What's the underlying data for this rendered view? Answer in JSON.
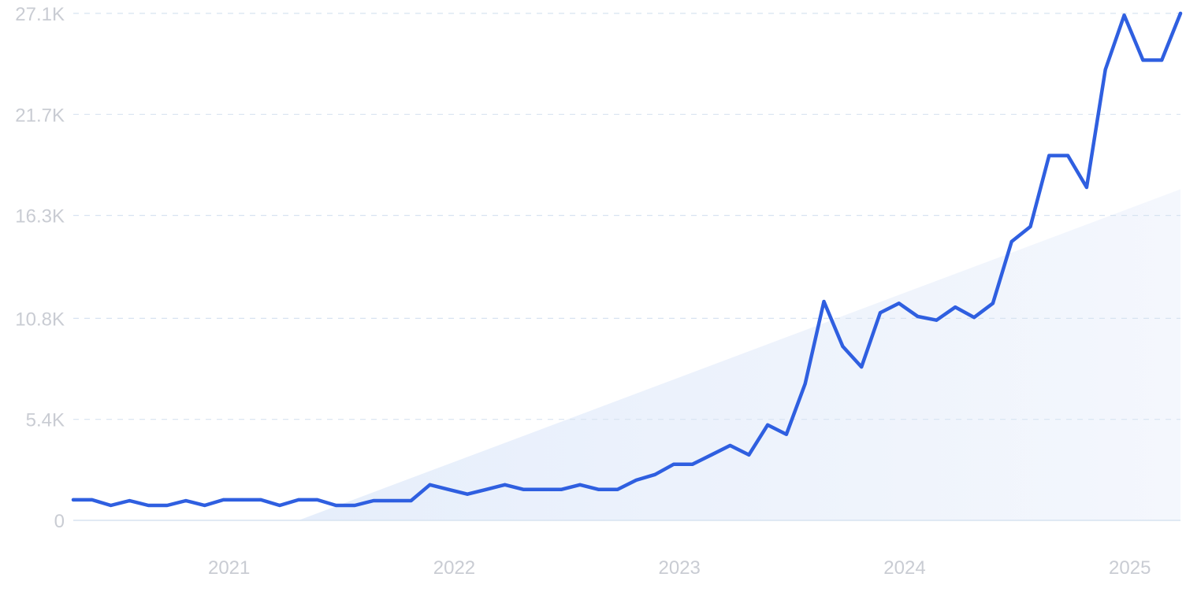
{
  "chart_data": {
    "type": "line",
    "title": "",
    "xlabel": "",
    "ylabel": "",
    "y_ticks": [
      "0",
      "5.4K",
      "10.8K",
      "16.3K",
      "21.7K",
      "27.1K"
    ],
    "y_tick_values": [
      0,
      5400,
      10800,
      16300,
      21700,
      27100
    ],
    "ylim": [
      0,
      27100
    ],
    "x_ticks": [
      "2021",
      "2022",
      "2023",
      "2024",
      "2025"
    ],
    "x_tick_values": [
      "2021-01",
      "2022-01",
      "2023-01",
      "2024-01",
      "2025-01"
    ],
    "xlim": [
      "2020-06",
      "2025-05"
    ],
    "grid": true,
    "colors": {
      "line": "#2f5fe0",
      "grid": "#d7e3f1",
      "trend": "#eaf1fc",
      "tick": "#c9ccd3"
    },
    "series": [
      {
        "x": [
          "2020-06",
          "2020-07",
          "2020-08",
          "2020-09",
          "2020-10",
          "2020-11",
          "2020-12",
          "2021-01",
          "2021-02",
          "2021-03",
          "2021-04",
          "2021-05",
          "2021-06",
          "2021-07",
          "2021-08",
          "2021-09",
          "2021-10",
          "2021-11",
          "2021-12",
          "2022-01",
          "2022-02",
          "2022-03",
          "2022-04",
          "2022-05",
          "2022-06",
          "2022-07",
          "2022-08",
          "2022-09",
          "2022-10",
          "2022-11",
          "2022-12",
          "2023-01",
          "2023-02",
          "2023-03",
          "2023-04",
          "2023-05",
          "2023-06",
          "2023-07",
          "2023-08",
          "2023-09",
          "2023-10",
          "2023-11",
          "2023-12",
          "2024-01",
          "2024-02",
          "2024-03",
          "2024-04",
          "2024-05",
          "2024-06",
          "2024-07",
          "2024-08",
          "2024-09",
          "2024-10",
          "2024-11",
          "2024-12",
          "2025-01",
          "2025-02",
          "2025-03",
          "2025-04",
          "2025-05"
        ],
        "values": [
          1100,
          1100,
          800,
          1050,
          800,
          800,
          1050,
          800,
          1100,
          1100,
          1100,
          800,
          1100,
          1100,
          800,
          800,
          1050,
          1050,
          1050,
          1900,
          1650,
          1400,
          1650,
          1900,
          1650,
          1650,
          1650,
          1900,
          1650,
          1650,
          2150,
          2450,
          3000,
          3000,
          3500,
          4000,
          3500,
          5100,
          4600,
          7300,
          11700,
          9300,
          8200,
          11100,
          11600,
          10900,
          10700,
          11400,
          10850,
          11600,
          14900,
          15700,
          19500,
          19500,
          17800,
          24100,
          27000,
          24600,
          24600,
          27100
        ]
      }
    ],
    "trend": {
      "x": [
        "2021-06",
        "2025-05"
      ],
      "values": [
        0,
        17700
      ]
    }
  }
}
